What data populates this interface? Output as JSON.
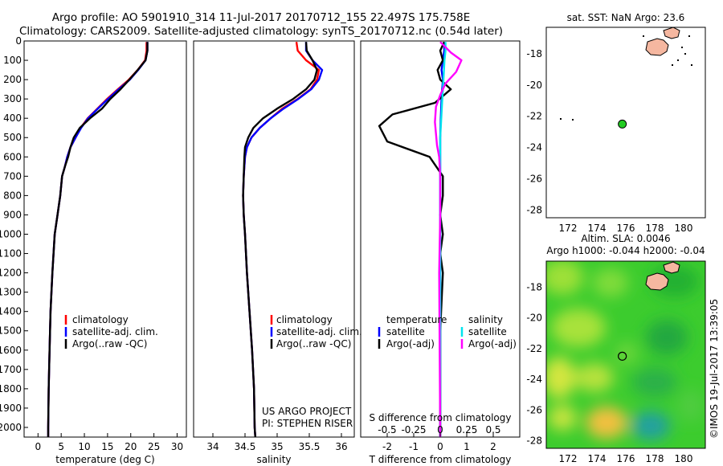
{
  "header": {
    "line1": "Argo profile: AO 5901910_314 11-Jul-2017 20170712_155 22.497S 175.758E",
    "line2": "Climatology: CARS2009. Satellite-adjusted climatology: synTS_20170712.nc (0.54d later)"
  },
  "credit": "©IMOS 19-Jul-2017 13:39:05",
  "colors": {
    "climatology": "#ff0000",
    "satellite": "#0000ff",
    "argo": "#000000",
    "sal_satellite": "#00e5ee",
    "sal_argo": "#ff00ff",
    "land": "#f5b7a0",
    "marker": "#22cc22"
  },
  "chart_data": [
    {
      "type": "line",
      "panel": "temperature",
      "xlabel": "temperature (deg C)",
      "ylabel": "",
      "xlim": [
        -3,
        32
      ],
      "ylim": [
        2050,
        0
      ],
      "xticks": [
        0,
        5,
        10,
        15,
        20,
        25,
        30
      ],
      "yticks": [
        0,
        100,
        200,
        300,
        400,
        500,
        600,
        700,
        800,
        900,
        1000,
        1100,
        1200,
        1300,
        1400,
        1500,
        1600,
        1700,
        1800,
        1900,
        2000
      ],
      "legend": [
        "climatology",
        "satellite-adj. clim.",
        "Argo(..raw -QC)"
      ],
      "legend_placement": "lower-right",
      "series": [
        {
          "name": "climatology",
          "x": [
            23.4,
            23.4,
            23.1,
            21.5,
            19.6,
            17.2,
            14.9,
            12.8,
            10.7,
            9.2,
            8.1,
            7.0,
            6.3,
            5.8,
            5.2,
            4.8,
            4.2,
            3.6,
            3.1,
            2.7,
            2.5,
            2.3,
            2.2,
            2.2
          ],
          "y": [
            5,
            50,
            100,
            150,
            200,
            250,
            300,
            350,
            400,
            450,
            500,
            550,
            600,
            650,
            700,
            800,
            900,
            1000,
            1200,
            1400,
            1600,
            1800,
            2000,
            2050
          ]
        },
        {
          "name": "satellite-adj. clim.",
          "x": [
            23.6,
            23.6,
            23.2,
            21.6,
            19.8,
            17.4,
            15.1,
            12.9,
            10.8,
            9.3,
            8.1,
            7.0,
            6.3,
            5.8,
            5.2,
            4.8,
            4.2,
            3.6,
            3.1,
            2.7,
            2.5,
            2.3,
            2.2,
            2.2
          ],
          "y": [
            5,
            50,
            100,
            150,
            200,
            250,
            300,
            350,
            400,
            450,
            500,
            550,
            600,
            650,
            700,
            800,
            900,
            1000,
            1200,
            1400,
            1600,
            1800,
            2000,
            2050
          ]
        },
        {
          "name": "Argo(..raw -QC)",
          "x": [
            23.6,
            23.6,
            23.2,
            21.5,
            19.7,
            17.8,
            15.6,
            13.8,
            11.2,
            9.0,
            7.7,
            7.0,
            6.5,
            5.8,
            5.2,
            4.8,
            4.2,
            3.6,
            3.1,
            2.7,
            2.5,
            2.3,
            2.2,
            2.2
          ],
          "y": [
            5,
            50,
            100,
            150,
            200,
            250,
            300,
            350,
            400,
            450,
            500,
            550,
            600,
            650,
            700,
            800,
            900,
            1000,
            1200,
            1400,
            1600,
            1800,
            2000,
            2050
          ]
        }
      ]
    },
    {
      "type": "line",
      "panel": "salinity",
      "xlabel": "salinity",
      "xlim": [
        33.7,
        36.2
      ],
      "ylim": [
        2050,
        0
      ],
      "xticks": [
        34,
        34.5,
        35,
        35.5,
        36
      ],
      "legend": [
        "climatology",
        "satellite-adj. clim.",
        "Argo(..raw -QC)"
      ],
      "legend_placement": "lower-right",
      "annotation": [
        "US ARGO PROJECT",
        "PI: STEPHEN RISER"
      ],
      "series": [
        {
          "name": "climatology",
          "x": [
            35.3,
            35.32,
            35.45,
            35.65,
            35.62,
            35.52,
            35.32,
            35.08,
            34.9,
            34.73,
            34.6,
            34.53,
            34.5,
            34.48,
            34.47,
            34.48,
            34.5,
            34.53,
            34.57,
            34.61,
            34.64,
            34.65,
            34.66
          ],
          "y": [
            5,
            50,
            100,
            150,
            200,
            250,
            300,
            350,
            400,
            450,
            500,
            550,
            600,
            700,
            800,
            900,
            1000,
            1200,
            1400,
            1600,
            1800,
            2000,
            2050
          ]
        },
        {
          "name": "satellite-adj. clim.",
          "x": [
            35.45,
            35.45,
            35.55,
            35.7,
            35.65,
            35.53,
            35.33,
            35.1,
            34.9,
            34.73,
            34.6,
            34.53,
            34.5,
            34.48,
            34.47,
            34.48,
            34.5,
            34.53,
            34.57,
            34.61,
            34.64,
            34.65,
            34.66
          ],
          "y": [
            5,
            50,
            100,
            150,
            200,
            250,
            300,
            350,
            400,
            450,
            500,
            550,
            600,
            700,
            800,
            900,
            1000,
            1200,
            1400,
            1600,
            1800,
            2000,
            2050
          ]
        },
        {
          "name": "Argo(..raw -QC)",
          "x": [
            35.45,
            35.46,
            35.55,
            35.62,
            35.58,
            35.45,
            35.25,
            35.0,
            34.78,
            34.63,
            34.55,
            34.5,
            34.49,
            34.48,
            34.47,
            34.48,
            34.5,
            34.53,
            34.57,
            34.61,
            34.64,
            34.65,
            34.66
          ],
          "y": [
            5,
            50,
            100,
            150,
            200,
            250,
            300,
            350,
            400,
            450,
            500,
            550,
            600,
            700,
            800,
            900,
            1000,
            1200,
            1400,
            1600,
            1800,
            2000,
            2050
          ]
        }
      ]
    },
    {
      "type": "line",
      "panel": "difference",
      "xlabel": "T difference from climatology",
      "xlabel_top": "S difference from climatology",
      "xlim": [
        -3,
        3
      ],
      "ylim": [
        2050,
        0
      ],
      "xticks_T": [
        -2,
        -1,
        0,
        1,
        2
      ],
      "xticks_S_labels": [
        "-0.5",
        "-0.25",
        "0",
        "0.25",
        "0.5"
      ],
      "legend_left": [
        "temperature",
        "satellite",
        "Argo(-adj)"
      ],
      "legend_right": [
        "salinity",
        "satellite",
        "Argo(-adj)"
      ],
      "series": [
        {
          "name": "satellite",
          "quantity": "temperature",
          "x": [
            0.15,
            0.15,
            0.1,
            0.05,
            0.1,
            0.05,
            0.02,
            0.0,
            0.0,
            0.0,
            0.0,
            0.0,
            0.0,
            0.0,
            0.0
          ],
          "y": [
            5,
            50,
            100,
            150,
            200,
            300,
            400,
            500,
            600,
            800,
            1000,
            1200,
            1500,
            1800,
            2050
          ]
        },
        {
          "name": "Argo(-adj)",
          "quantity": "temperature",
          "x": [
            0.15,
            0.0,
            0.1,
            -0.1,
            0.0,
            0.4,
            -0.2,
            -1.8,
            -2.3,
            -2.0,
            -0.4,
            0.1,
            0.1,
            0.0,
            0.1,
            0.0,
            0.1,
            0.0,
            0.0
          ],
          "y": [
            5,
            50,
            100,
            150,
            200,
            250,
            320,
            380,
            440,
            520,
            600,
            700,
            800,
            900,
            1000,
            1100,
            1200,
            1500,
            2050
          ]
        },
        {
          "name": "satellite",
          "quantity": "salinity",
          "x": [
            0.05,
            0.05,
            0.04,
            0.03,
            0.02,
            0.01,
            0.0,
            0.0,
            0.0,
            0.0,
            0.0
          ],
          "y": [
            5,
            50,
            100,
            200,
            300,
            400,
            500,
            700,
            1000,
            1500,
            2050
          ]
        },
        {
          "name": "Argo(-adj)",
          "quantity": "salinity",
          "x": [
            0.0,
            0.1,
            0.2,
            0.15,
            0.05,
            0.0,
            -0.04,
            -0.05,
            -0.04,
            -0.03,
            -0.01,
            0.0,
            0.0,
            -0.01,
            0.0
          ],
          "y": [
            5,
            60,
            100,
            160,
            220,
            280,
            340,
            420,
            480,
            540,
            600,
            700,
            900,
            1200,
            2050
          ]
        }
      ]
    },
    {
      "type": "scatter",
      "panel": "map-sst",
      "title": "sat. SST: NaN Argo: 23.6",
      "xlim": [
        170.5,
        181.5
      ],
      "ylim": [
        -28.5,
        -16.3
      ],
      "xticks": [
        172,
        174,
        176,
        178,
        180
      ],
      "yticks": [
        -18,
        -20,
        -22,
        -24,
        -26,
        -28
      ],
      "points": [
        {
          "lon": 175.758,
          "lat": -22.497
        }
      ]
    },
    {
      "type": "heatmap",
      "panel": "map-sla",
      "title": [
        "Altim. SLA: 0.0046",
        "Argo h1000: -0.044 h2000: -0.04"
      ],
      "xlim": [
        170.5,
        181.5
      ],
      "ylim": [
        -28.5,
        -16.3
      ],
      "xticks": [
        172,
        174,
        176,
        178,
        180
      ],
      "yticks": [
        -18,
        -20,
        -22,
        -24,
        -26,
        -28
      ],
      "points": [
        {
          "lon": 175.758,
          "lat": -22.497
        }
      ]
    }
  ]
}
